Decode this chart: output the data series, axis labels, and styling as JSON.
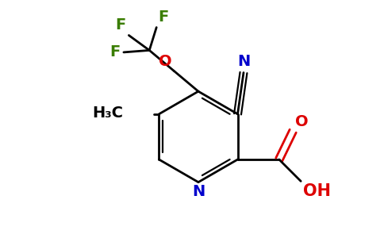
{
  "bg_color": "#ffffff",
  "bond_color": "#000000",
  "N_color": "#0000cc",
  "O_color": "#dd0000",
  "F_color": "#3a7d00",
  "figsize": [
    4.84,
    3.0
  ],
  "dpi": 100,
  "xlim": [
    0,
    9.68
  ],
  "ylim": [
    0,
    6.0
  ]
}
